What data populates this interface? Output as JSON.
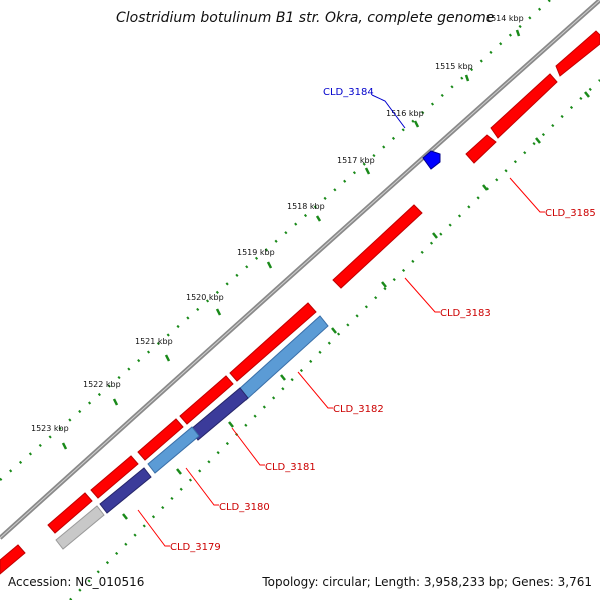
{
  "title": "Clostridium botulinum B1 str. Okra, complete genome",
  "accession_text": "Accession: NC_010516",
  "summary_text": "Topology: circular; Length: 3,958,233 bp; Genes: 3,761",
  "colors": {
    "backbone": "#808080",
    "forward_gene": "#ff0000",
    "reverse_gene_label": "#0000cc",
    "reverse_gene": "#0000ff",
    "cds_light": "#5b9bd5",
    "cds_dark": "#3b3b9a",
    "cds_gray": "#c8c8c8",
    "tick": "#1a8a1a",
    "leader_red": "#ff0000",
    "leader_blue": "#0000cc"
  },
  "ticks": [
    {
      "label": "1514 kbp"
    },
    {
      "label": "1515 kbp"
    },
    {
      "label": "1516 kbp"
    },
    {
      "label": "1517 kbp"
    },
    {
      "label": "1518 kbp"
    },
    {
      "label": "1519 kbp"
    },
    {
      "label": "1520 kbp"
    },
    {
      "label": "1521 kbp"
    },
    {
      "label": "1522 kbp"
    },
    {
      "label": "1523 kbp"
    }
  ],
  "gene_labels": [
    {
      "name": "CLD_3184",
      "strand": "reverse"
    },
    {
      "name": "CLD_3185",
      "strand": "forward"
    },
    {
      "name": "CLD_3183",
      "strand": "forward"
    },
    {
      "name": "CLD_3182",
      "strand": "forward"
    },
    {
      "name": "CLD_3181",
      "strand": "forward"
    },
    {
      "name": "CLD_3180",
      "strand": "forward"
    },
    {
      "name": "CLD_3179",
      "strand": "forward"
    }
  ]
}
